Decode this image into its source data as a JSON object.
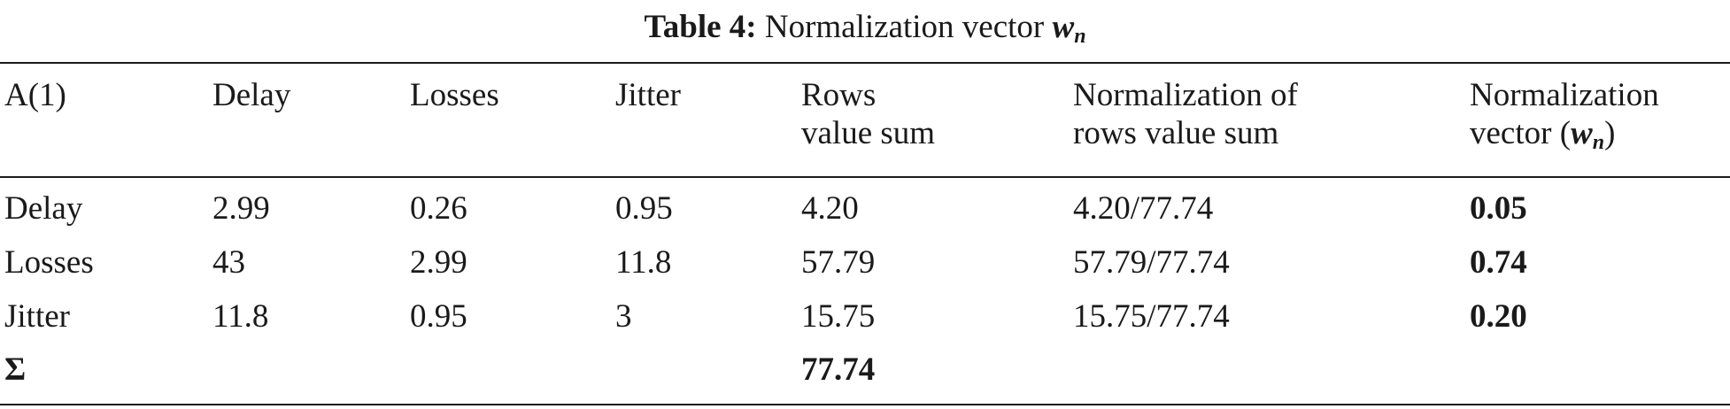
{
  "caption": {
    "label": "Table 4:",
    "text": "Normalization vector",
    "symbol": "w",
    "subscript": "n"
  },
  "table": {
    "headers": {
      "a1": "A(1)",
      "delay": "Delay",
      "losses": "Losses",
      "jitter": "Jitter",
      "rows_sum_line1": "Rows",
      "rows_sum_line2": "value sum",
      "norm_rows_line1": "Normalization of",
      "norm_rows_line2": "rows value sum",
      "norm_vec_line1": "Normalization",
      "norm_vec_prefix": "vector (",
      "norm_vec_symbol": "w",
      "norm_vec_subscript": "n",
      "norm_vec_suffix": ")"
    },
    "rows": [
      {
        "label": "Delay",
        "delay": "2.99",
        "losses": "0.26",
        "jitter": "0.95",
        "sum": "4.20",
        "normalization": "4.20/77.74",
        "vector": "0.05"
      },
      {
        "label": "Losses",
        "delay": "43",
        "losses": "2.99",
        "jitter": "11.8",
        "sum": "57.79",
        "normalization": "57.79/77.74",
        "vector": "0.74"
      },
      {
        "label": "Jitter",
        "delay": "11.8",
        "losses": "0.95",
        "jitter": "3",
        "sum": "15.75",
        "normalization": "15.75/77.74",
        "vector": "0.20"
      }
    ],
    "total": {
      "label": "Σ",
      "sum": "77.74"
    }
  }
}
